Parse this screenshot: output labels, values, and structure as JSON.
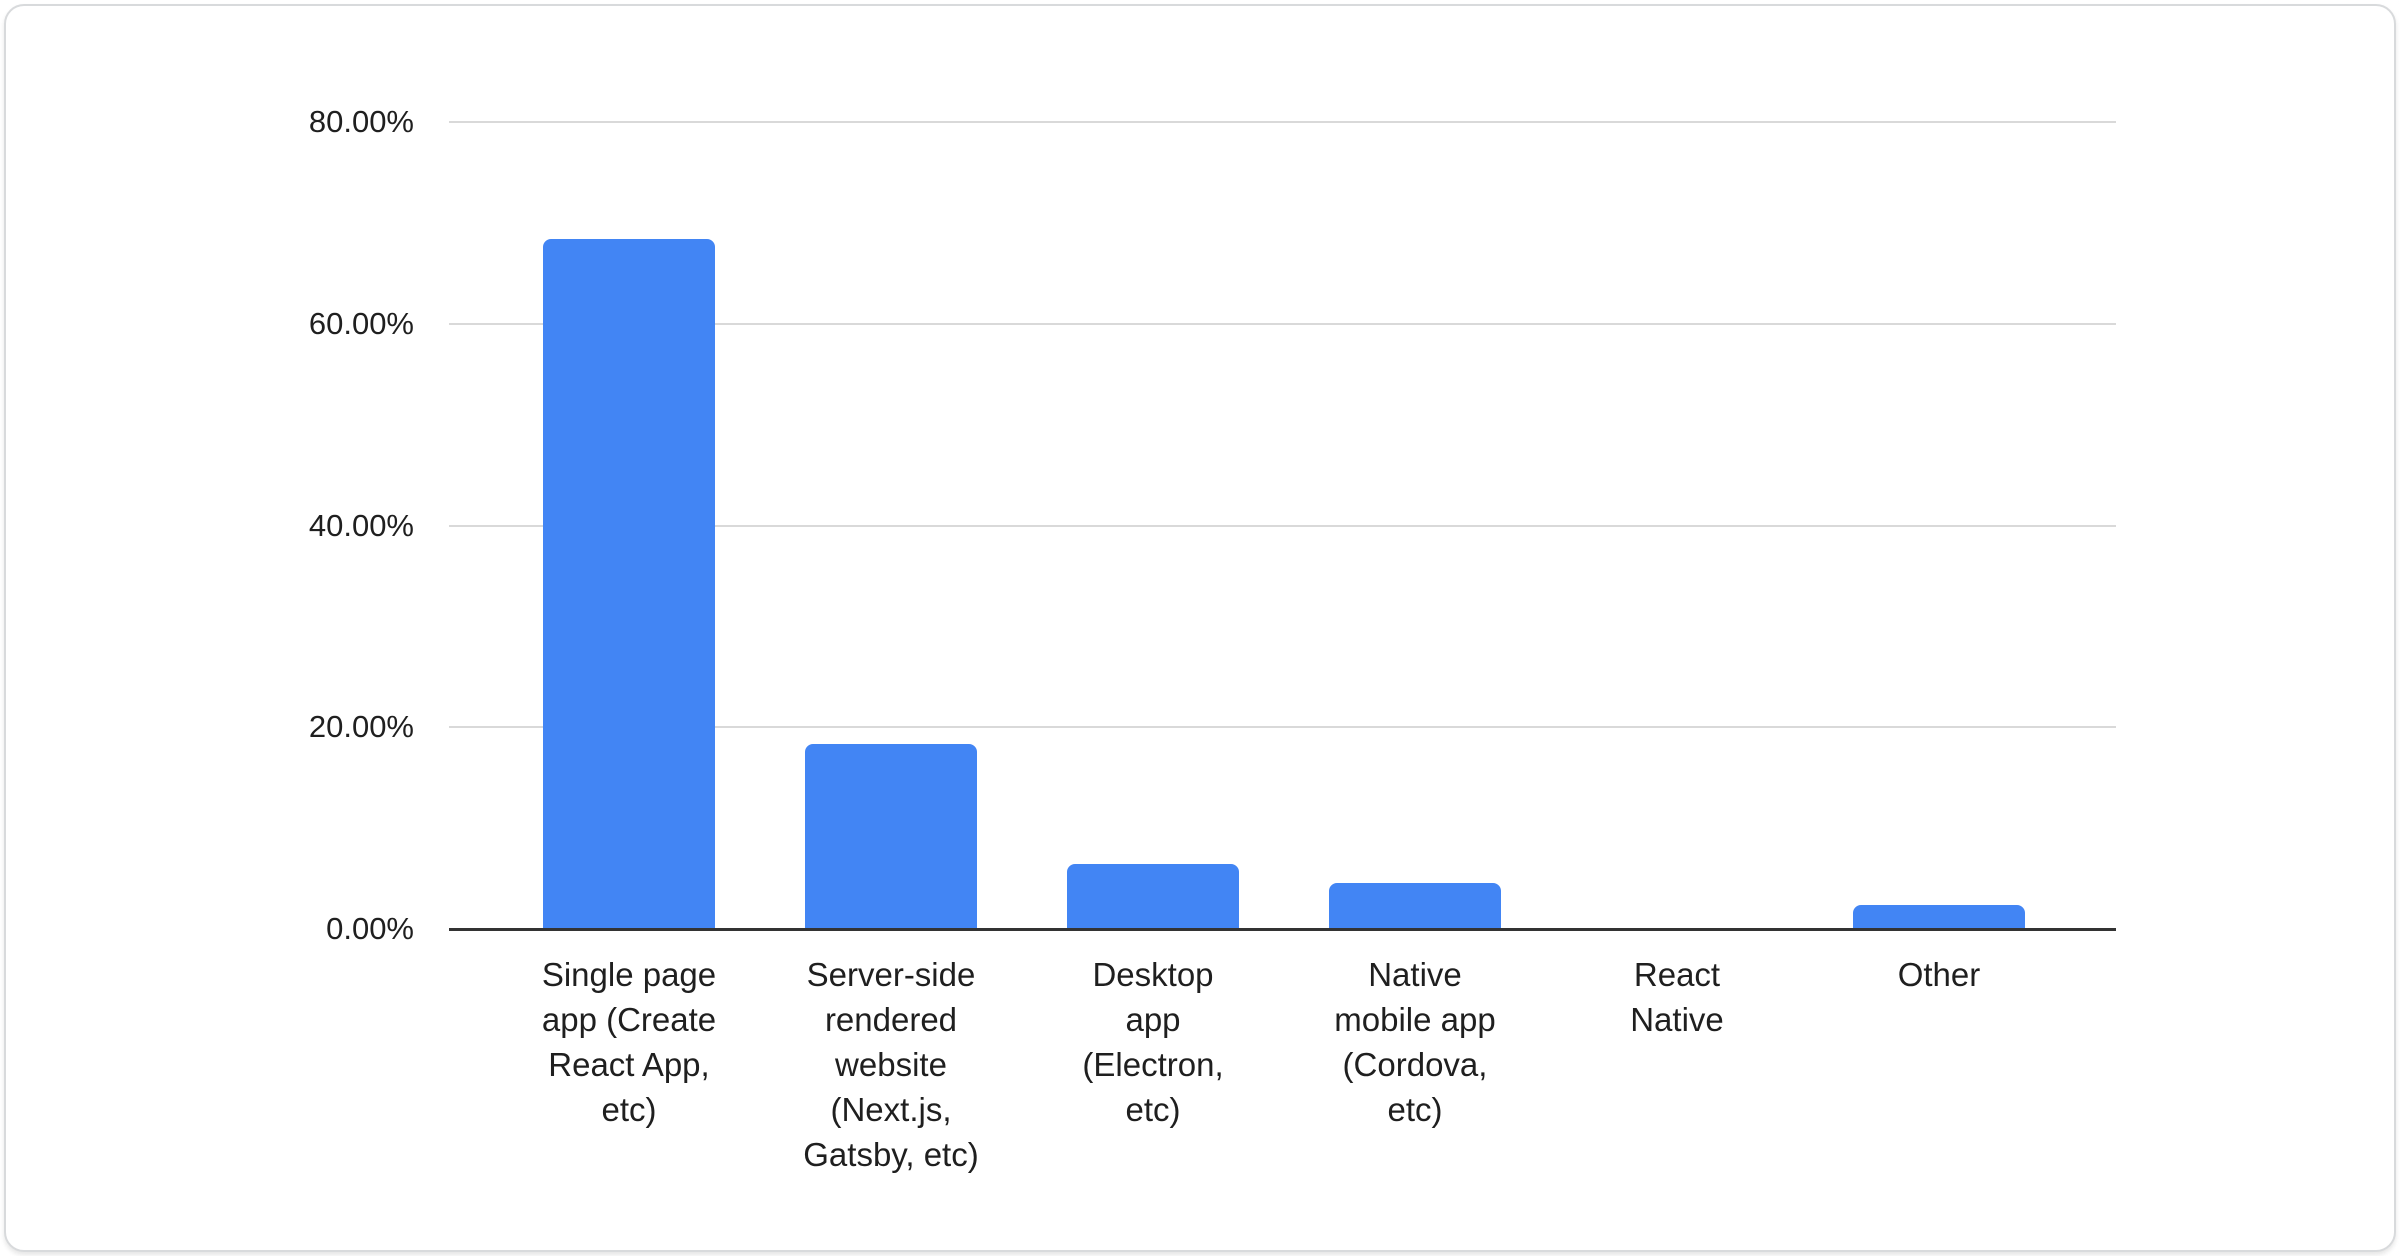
{
  "accent_color": "#4285f4",
  "gridline_color": "#d9d9d9",
  "axis_color": "#333333",
  "chart_data": {
    "type": "bar",
    "title": "",
    "xlabel": "",
    "ylabel": "",
    "ylim": [
      0,
      80
    ],
    "grid": "horizontal",
    "legend": "none",
    "bar_color": "#4285f4",
    "categories": [
      "Single page app (Create React App, etc)",
      "Server-side rendered website (Next.js, Gatsby, etc)",
      "Desktop app (Electron, etc)",
      "Native mobile app (Cordova, etc)",
      "React Native",
      "Other"
    ],
    "category_lines": [
      [
        "Single page",
        "app (Create",
        "React App,",
        "etc)"
      ],
      [
        "Server-side",
        "rendered",
        "website",
        "(Next.js,",
        "Gatsby, etc)"
      ],
      [
        "Desktop",
        "app",
        "(Electron,",
        "etc)"
      ],
      [
        "Native",
        "mobile app",
        "(Cordova,",
        "etc)"
      ],
      [
        "React",
        "Native"
      ],
      [
        "Other"
      ]
    ],
    "values": [
      68.4,
      18.3,
      6.4,
      4.6,
      0,
      2.4
    ],
    "y_ticks": [
      "80.00%",
      "60.00%",
      "40.00%",
      "20.00%",
      "0.00%"
    ]
  }
}
